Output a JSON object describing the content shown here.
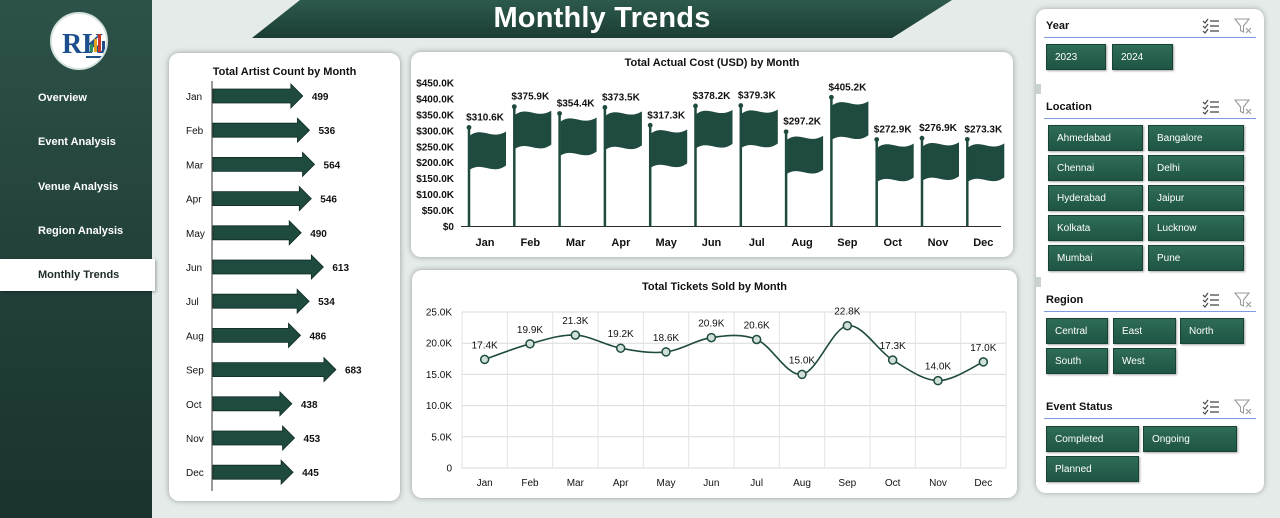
{
  "title": "Monthly Trends",
  "logo_letters": "RK",
  "nav": [
    {
      "label": "Overview"
    },
    {
      "label": "Event Analysis"
    },
    {
      "label": "Venue Analysis"
    },
    {
      "label": "Region Analysis"
    },
    {
      "label": "Monthly Trends",
      "active": true
    }
  ],
  "colors": {
    "primary": "#1f4a3f",
    "accent": "#2f6d58",
    "panel": "#ffffff",
    "background": "#e4ebe9"
  },
  "slicers": {
    "year": {
      "title": "Year",
      "options": [
        "2023",
        "2024"
      ]
    },
    "location": {
      "title": "Location",
      "options": [
        "Ahmedabad",
        "Bangalore",
        "Chennai",
        "Delhi",
        "Hyderabad",
        "Jaipur",
        "Kolkata",
        "Lucknow",
        "Mumbai",
        "Pune"
      ]
    },
    "region": {
      "title": "Region",
      "options": [
        "Central",
        "East",
        "North",
        "South",
        "West"
      ]
    },
    "event_status": {
      "title": "Event Status",
      "options": [
        "Completed",
        "Ongoing",
        "Planned"
      ]
    }
  },
  "chart_data": [
    {
      "type": "bar",
      "title": "Total Artist Count by Month",
      "orientation": "horizontal",
      "categories": [
        "Jan",
        "Feb",
        "Mar",
        "Apr",
        "May",
        "Jun",
        "Jul",
        "Aug",
        "Sep",
        "Oct",
        "Nov",
        "Dec"
      ],
      "values": [
        499,
        536,
        564,
        546,
        490,
        613,
        534,
        486,
        683,
        438,
        453,
        445
      ],
      "data_labels": [
        "499",
        "536",
        "564",
        "546",
        "490",
        "613",
        "534",
        "486",
        "683",
        "438",
        "453",
        "445"
      ],
      "xlim": [
        0,
        760
      ],
      "grid": false,
      "legend": "none"
    },
    {
      "type": "bar",
      "title": "Total Actual Cost (USD) by Month",
      "categories": [
        "Jan",
        "Feb",
        "Mar",
        "Apr",
        "May",
        "Jun",
        "Jul",
        "Aug",
        "Sep",
        "Oct",
        "Nov",
        "Dec"
      ],
      "values": [
        310.6,
        375.9,
        354.4,
        373.5,
        317.3,
        378.2,
        379.3,
        297.2,
        405.2,
        272.9,
        276.9,
        273.3
      ],
      "unit": "thousand USD",
      "data_labels": [
        "$310.6K",
        "$375.9K",
        "$354.4K",
        "$373.5K",
        "$317.3K",
        "$378.2K",
        "$379.3K",
        "$297.2K",
        "$405.2K",
        "$272.9K",
        "$276.9K",
        "$273.3K"
      ],
      "y_ticks": [
        "$0",
        "$50.0K",
        "$100.0K",
        "$150.0K",
        "$200.0K",
        "$250.0K",
        "$300.0K",
        "$350.0K",
        "$400.0K",
        "$450.0K"
      ],
      "ylim": [
        0,
        450
      ],
      "grid": false,
      "legend": "none"
    },
    {
      "type": "line",
      "title": "Total Tickets Sold by Month",
      "categories": [
        "Jan",
        "Feb",
        "Mar",
        "Apr",
        "May",
        "Jun",
        "Jul",
        "Aug",
        "Sep",
        "Oct",
        "Nov",
        "Dec"
      ],
      "values": [
        17.4,
        19.9,
        21.3,
        19.2,
        18.6,
        20.9,
        20.6,
        15.0,
        22.8,
        17.3,
        14.0,
        17.0
      ],
      "unit": "thousand tickets",
      "data_labels": [
        "17.4K",
        "19.9K",
        "21.3K",
        "19.2K",
        "18.6K",
        "20.9K",
        "20.6K",
        "15.0K",
        "22.8K",
        "17.3K",
        "14.0K",
        "17.0K"
      ],
      "y_ticks": [
        "0",
        "5.0K",
        "10.0K",
        "15.0K",
        "20.0K",
        "25.0K"
      ],
      "ylim": [
        0,
        25
      ],
      "grid": true,
      "legend": "none"
    }
  ]
}
